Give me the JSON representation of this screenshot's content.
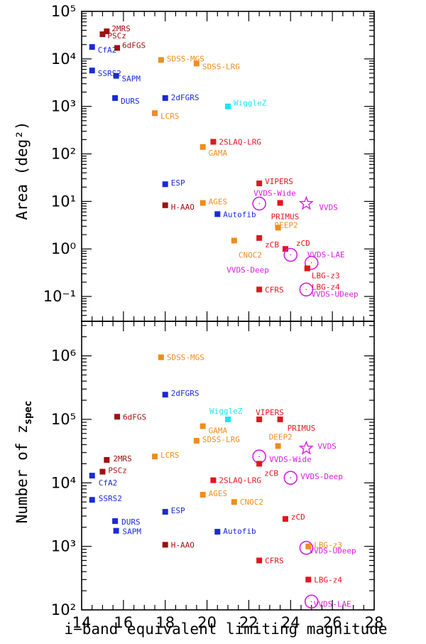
{
  "chart_data": [
    {
      "type": "scatter",
      "panel": "top",
      "ylabel": "Area (deg²)",
      "yscale": "log",
      "ylim": [
        0.03,
        100000
      ],
      "xlim": [
        14,
        28
      ],
      "ytick_labels": [
        "10⁻¹",
        "10⁰",
        "10¹",
        "10²",
        "10³",
        "10⁴",
        "10⁵"
      ],
      "points": [
        {
          "label": "2MRS",
          "x": 15.2,
          "y": 38000,
          "group": "darkred"
        },
        {
          "label": "PSCz",
          "x": 15.0,
          "y": 33000,
          "group": "darkred"
        },
        {
          "label": "6dFGS",
          "x": 15.7,
          "y": 17000,
          "group": "darkred"
        },
        {
          "label": "CfA2",
          "x": 14.5,
          "y": 17800,
          "group": "blue"
        },
        {
          "label": "SSRS2",
          "x": 14.5,
          "y": 5700,
          "group": "blue"
        },
        {
          "label": "SAPM",
          "x": 15.65,
          "y": 4400,
          "group": "blue"
        },
        {
          "label": "DURS",
          "x": 15.6,
          "y": 1500,
          "group": "blue"
        },
        {
          "label": "2dFGRS",
          "x": 18.0,
          "y": 1500,
          "group": "blue"
        },
        {
          "label": "SDSS-MGS",
          "x": 17.8,
          "y": 9500,
          "group": "orange"
        },
        {
          "label": "SDSS-LRG",
          "x": 19.5,
          "y": 8000,
          "group": "orange"
        },
        {
          "label": "LCRS",
          "x": 17.5,
          "y": 720,
          "group": "orange"
        },
        {
          "label": "WiggleZ",
          "x": 21.0,
          "y": 1000,
          "group": "cyan"
        },
        {
          "label": "2SLAQ-LRG",
          "x": 20.3,
          "y": 180,
          "group": "red"
        },
        {
          "label": "GAMA",
          "x": 19.8,
          "y": 140,
          "group": "orange"
        },
        {
          "label": "ESP",
          "x": 18.0,
          "y": 23,
          "group": "blue"
        },
        {
          "label": "H-AAO",
          "x": 18.0,
          "y": 8.3,
          "group": "darkred"
        },
        {
          "label": "AGES",
          "x": 19.8,
          "y": 9.3,
          "group": "orange"
        },
        {
          "label": "Autofib",
          "x": 20.5,
          "y": 5.4,
          "group": "blue"
        },
        {
          "label": "VIPERS",
          "x": 22.5,
          "y": 24,
          "group": "red"
        },
        {
          "label": "VVDS-Wide",
          "x": 22.5,
          "y": 9,
          "group": "magenta-circle"
        },
        {
          "label": "PRIMUS",
          "x": 23.5,
          "y": 9.3,
          "group": "red"
        },
        {
          "label": "VVDS",
          "x": 24.75,
          "y": 9,
          "group": "magenta-star"
        },
        {
          "label": "DEEP2",
          "x": 23.4,
          "y": 2.8,
          "group": "orange"
        },
        {
          "label": "CNOC2",
          "x": 21.3,
          "y": 1.5,
          "group": "orange"
        },
        {
          "label": "zCB",
          "x": 22.5,
          "y": 1.7,
          "group": "red"
        },
        {
          "label": "zCD",
          "x": 23.75,
          "y": 1.0,
          "group": "red"
        },
        {
          "label": "VVDS-Deep",
          "x": 24.0,
          "y": 0.75,
          "group": "magenta-circle"
        },
        {
          "label": "VVDS-LAE",
          "x": 25.0,
          "y": 0.51,
          "group": "magenta-circle"
        },
        {
          "label": "LBG-z3",
          "x": 24.8,
          "y": 0.39,
          "group": "red"
        },
        {
          "label": "LBG-z4",
          "x": 24.8,
          "y": 0.39,
          "group": "red"
        },
        {
          "label": "CFRS",
          "x": 22.5,
          "y": 0.14,
          "group": "red"
        },
        {
          "label": "VVDS-UDeep",
          "x": 24.75,
          "y": 0.14,
          "group": "magenta-circle"
        }
      ]
    },
    {
      "type": "scatter",
      "panel": "bottom",
      "ylabel": "Number of z",
      "ylabel_sub": "spec",
      "xlabel": "i−band equivalent limiting magnitude",
      "yscale": "log",
      "ylim": [
        100,
        3500000
      ],
      "xlim": [
        14,
        28
      ],
      "xtick_labels": [
        "14",
        "16",
        "18",
        "20",
        "22",
        "24",
        "26",
        "28"
      ],
      "ytick_labels": [
        "10²",
        "10³",
        "10⁴",
        "10⁵",
        "10⁶"
      ],
      "points": [
        {
          "label": "SDSS-MGS",
          "x": 17.8,
          "y": 950000,
          "group": "orange"
        },
        {
          "label": "2dFGRS",
          "x": 18.0,
          "y": 245000,
          "group": "blue"
        },
        {
          "label": "6dFGS",
          "x": 15.7,
          "y": 110000,
          "group": "darkred"
        },
        {
          "label": "WiggleZ",
          "x": 21.0,
          "y": 100000,
          "group": "cyan"
        },
        {
          "label": "VIPERS",
          "x": 22.5,
          "y": 100000,
          "group": "red"
        },
        {
          "label": "PRIMUS",
          "x": 23.5,
          "y": 100000,
          "group": "red"
        },
        {
          "label": "GAMA",
          "x": 19.8,
          "y": 78000,
          "group": "orange"
        },
        {
          "label": "SDSS-LRG",
          "x": 19.5,
          "y": 46000,
          "group": "orange"
        },
        {
          "label": "DEEP2",
          "x": 23.4,
          "y": 38000,
          "group": "orange"
        },
        {
          "label": "VVDS",
          "x": 24.75,
          "y": 35000,
          "group": "magenta-star"
        },
        {
          "label": "LCRS",
          "x": 17.5,
          "y": 26000,
          "group": "orange"
        },
        {
          "label": "VVDS-Wide",
          "x": 22.5,
          "y": 26000,
          "group": "magenta-circle"
        },
        {
          "label": "2MRS",
          "x": 15.2,
          "y": 23000,
          "group": "darkred"
        },
        {
          "label": "zCB",
          "x": 22.5,
          "y": 20000,
          "group": "red"
        },
        {
          "label": "PSCz",
          "x": 15.0,
          "y": 15000,
          "group": "darkred"
        },
        {
          "label": "CfA2",
          "x": 14.5,
          "y": 13000,
          "group": "blue"
        },
        {
          "label": "VVDS-Deep",
          "x": 24.0,
          "y": 12000,
          "group": "magenta-circle"
        },
        {
          "label": "2SLAQ-LRG",
          "x": 20.3,
          "y": 11000,
          "group": "red"
        },
        {
          "label": "AGES",
          "x": 19.8,
          "y": 6500,
          "group": "orange"
        },
        {
          "label": "SSRS2",
          "x": 14.5,
          "y": 5400,
          "group": "blue"
        },
        {
          "label": "CNOC2",
          "x": 21.3,
          "y": 5000,
          "group": "orange"
        },
        {
          "label": "ESP",
          "x": 18.0,
          "y": 3500,
          "group": "blue"
        },
        {
          "label": "zCD",
          "x": 23.75,
          "y": 2700,
          "group": "red"
        },
        {
          "label": "DURS",
          "x": 15.6,
          "y": 2500,
          "group": "blue"
        },
        {
          "label": "SAPM",
          "x": 15.65,
          "y": 1760,
          "group": "blue"
        },
        {
          "label": "Autofib",
          "x": 20.5,
          "y": 1700,
          "group": "blue"
        },
        {
          "label": "H-AAO",
          "x": 18.0,
          "y": 1060,
          "group": "darkred"
        },
        {
          "label": "VVDS-UDeep",
          "x": 24.75,
          "y": 950,
          "group": "magenta-circle"
        },
        {
          "label": "LBG-z3",
          "x": 24.85,
          "y": 1000,
          "group": "orange"
        },
        {
          "label": "CFRS",
          "x": 22.5,
          "y": 600,
          "group": "red"
        },
        {
          "label": "LBG-z4",
          "x": 24.85,
          "y": 300,
          "group": "red"
        },
        {
          "label": "VVDS-LAE",
          "x": 25.0,
          "y": 135,
          "group": "magenta-circle"
        }
      ]
    }
  ],
  "colors": {
    "darkred": "#a01010",
    "blue": "#1a2ad8",
    "orange": "#f08c1e",
    "cyan": "#19e6f0",
    "red": "#e3141e",
    "magenta": "#d81ee0"
  }
}
